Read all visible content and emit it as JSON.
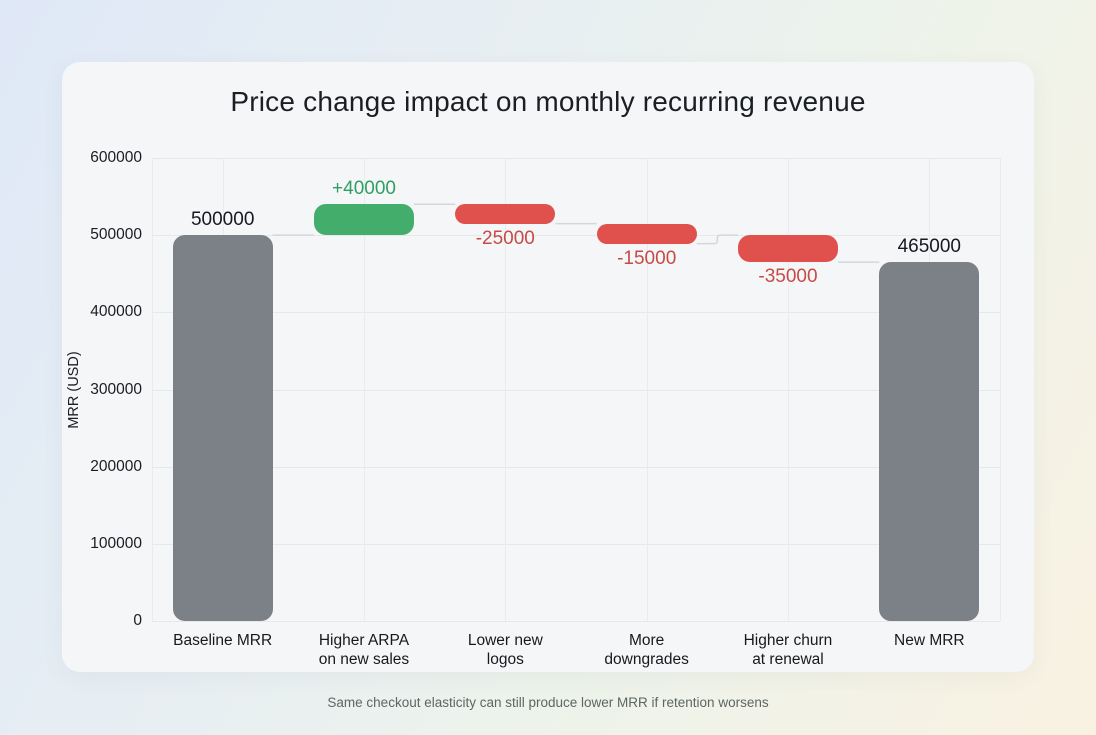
{
  "page": {
    "caption": "Same checkout elasticity can still produce lower MRR if retention worsens"
  },
  "chart_data": {
    "type": "bar",
    "subtype": "waterfall",
    "title": "Price change impact on monthly recurring revenue",
    "ylabel": "MRR (USD)",
    "ylim": [
      0,
      600000
    ],
    "yticks": [
      0,
      100000,
      200000,
      300000,
      400000,
      500000,
      600000
    ],
    "ytick_labels": [
      "0",
      "100000",
      "200000",
      "300000",
      "400000",
      "500000",
      "600000"
    ],
    "grid": "on",
    "legend": "none",
    "categories": [
      "Baseline MRR",
      "Higher ARPA\non new sales",
      "Lower new\nlogos",
      "More\ndowngrades",
      "Higher churn\nat renewal",
      "New MRR"
    ],
    "steps": [
      {
        "category": "Baseline MRR",
        "kind": "total",
        "value": 500000,
        "label": "500000"
      },
      {
        "category": "Higher ARPA on new sales",
        "kind": "increase",
        "value": 40000,
        "label": "+40000"
      },
      {
        "category": "Lower new logos",
        "kind": "decrease",
        "value": -25000,
        "label": "-25000"
      },
      {
        "category": "More downgrades",
        "kind": "decrease",
        "value": -15000,
        "label": "-15000"
      },
      {
        "category": "Higher churn at renewal",
        "kind": "decrease",
        "value": -35000,
        "label": "-35000"
      },
      {
        "category": "New MRR",
        "kind": "total",
        "value": 465000,
        "label": "465000"
      }
    ],
    "running_totals": [
      500000,
      540000,
      515000,
      500000,
      465000,
      465000
    ],
    "colors": {
      "total_bar": "#7b8186",
      "increase_bar": "#43ad6c",
      "decrease_bar": "#e0514e",
      "total_label": "#16191e",
      "increase_label": "#2f9f61",
      "decrease_label": "#c84a46",
      "grid_line": "#e6e9ec",
      "connector": "#d3d7da",
      "axis_text": "#1a1d22"
    }
  }
}
